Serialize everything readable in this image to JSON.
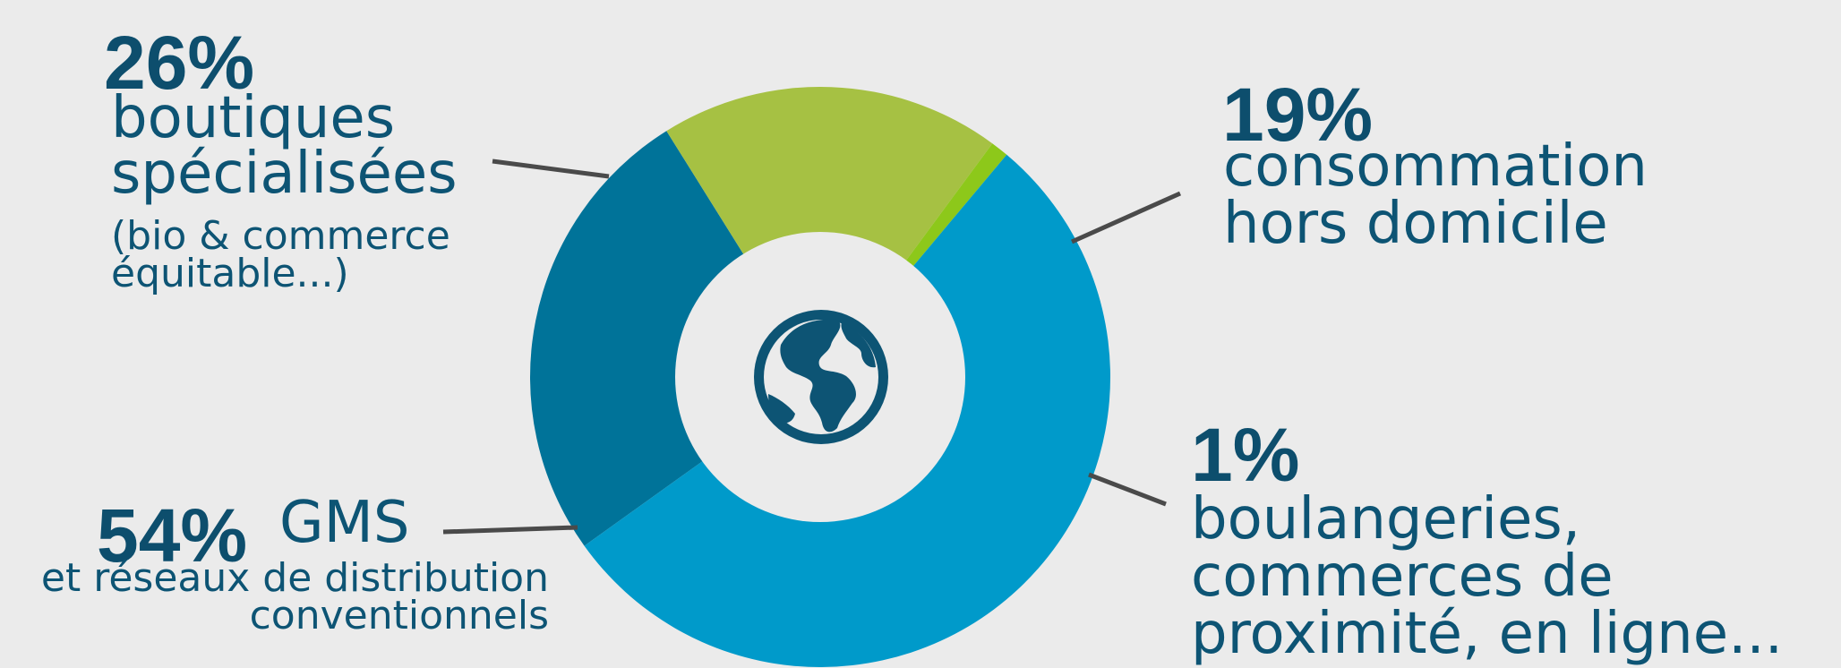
{
  "chart_data": {
    "type": "pie",
    "variant": "donut",
    "center_icon": "globe-icon",
    "slices": [
      {
        "name": "boutiques spécialisées",
        "value": 26,
        "pct_label": "26%",
        "line1": "boutiques",
        "line2": "spécialisées",
        "note1": "(bio & commerce",
        "note2": "équitable...)",
        "color": "#007399"
      },
      {
        "name": "consommation hors domicile",
        "value": 19,
        "pct_label": "19%",
        "line1": "consommation",
        "line2": "hors domicile",
        "color": "#a6c143"
      },
      {
        "name": "boulangeries, commerces de proximité, en ligne...",
        "value": 1,
        "pct_label": "1%",
        "line1": "boulangeries,",
        "line2": "commerces de",
        "line3": "proximité, en ligne...",
        "color": "#8dc81a"
      },
      {
        "name": "GMS et réseaux de distribution conventionnels",
        "value": 54,
        "pct_label": "54%",
        "line1": "GMS",
        "note1": "et réseaux de distribution",
        "note2": "conventionnels",
        "color": "#009aca"
      }
    ],
    "colors": {
      "text": "#0d5474",
      "leader": "#4a4a4a",
      "hole": "#ebebeb",
      "icon": "#0d5474"
    }
  }
}
